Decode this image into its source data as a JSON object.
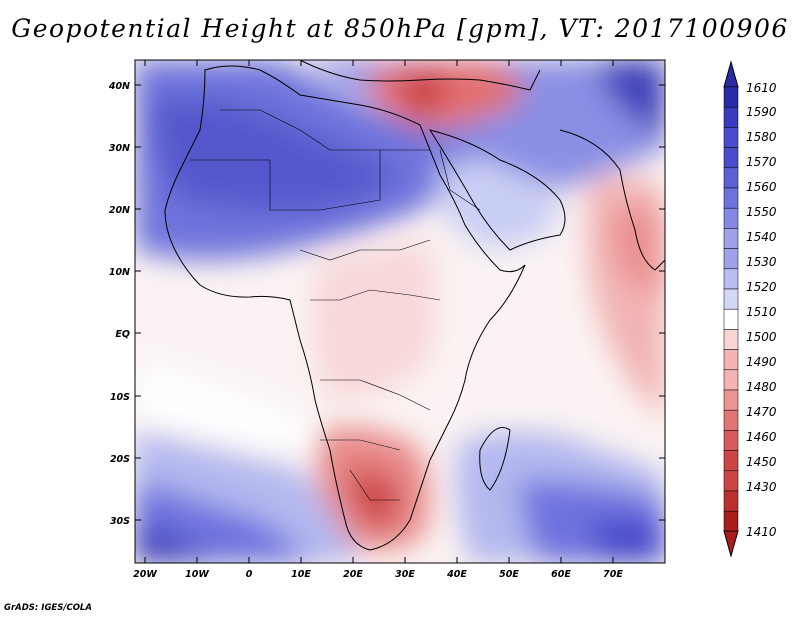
{
  "title": "Geopotential Height at 850hPa [gpm], VT: 2017100906",
  "credit": "GrADS: IGES/COLA",
  "map": {
    "lat_ticks": [
      "40N",
      "30N",
      "20N",
      "10N",
      "EQ",
      "10S",
      "20S",
      "30S"
    ],
    "lon_ticks": [
      "20W",
      "10W",
      "0",
      "10E",
      "20E",
      "30E",
      "40E",
      "50E",
      "60E",
      "70E"
    ]
  },
  "colorbar": {
    "levels": [
      "1610",
      "1590",
      "1580",
      "1570",
      "1560",
      "1550",
      "1540",
      "1530",
      "1520",
      "1510",
      "1500",
      "1490",
      "1480",
      "1470",
      "1460",
      "1450",
      "1430",
      "1410"
    ],
    "colors": [
      "#2a2aa8",
      "#3a3abf",
      "#4a4ccc",
      "#5c5fd6",
      "#6e72de",
      "#8588e4",
      "#9da2ea",
      "#b8bef1",
      "#d4d8f7",
      "#ffffff",
      "#f8d4d4",
      "#f2b4b4",
      "#ea9494",
      "#e27676",
      "#d85a5a",
      "#cc4444",
      "#bc3030",
      "#a81c1c"
    ]
  }
}
